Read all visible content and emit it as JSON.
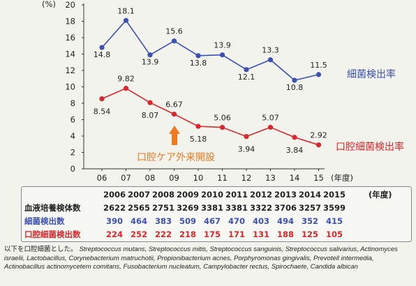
{
  "chart_data": {
    "type": "line",
    "y_unit": "(%)",
    "x_unit": "(年度)",
    "ylim": [
      0,
      20
    ],
    "yticks": [
      "0",
      "2",
      "4",
      "6",
      "8",
      "10",
      "12",
      "14",
      "16",
      "18",
      "20"
    ],
    "categories": [
      "06",
      "07",
      "08",
      "09",
      "10",
      "11",
      "12",
      "13",
      "14",
      "15"
    ],
    "series": [
      {
        "name": "細菌検出率",
        "color": "#3b50b8",
        "values": [
          14.8,
          18.1,
          13.9,
          15.6,
          13.8,
          13.9,
          12.1,
          13.3,
          10.8,
          11.5
        ],
        "labels": [
          "14.8",
          "18.1",
          "13.9",
          "15.6",
          "13.8",
          "13.9",
          "12.1",
          "13.3",
          "10.8",
          "11.5"
        ]
      },
      {
        "name": "口腔細菌検出率",
        "color": "#e0262a",
        "values": [
          8.54,
          9.82,
          8.07,
          6.67,
          5.18,
          5.06,
          3.94,
          5.07,
          3.84,
          2.92
        ],
        "labels": [
          "8.54",
          "9.82",
          "8.07",
          "6.67",
          "5.18",
          "5.06",
          "3.94",
          "5.07",
          "3.84",
          "2.92"
        ]
      }
    ],
    "annotation": {
      "text": "口腔ケア外来開設",
      "color": "#ee7b22",
      "at": "09"
    }
  },
  "table": {
    "years": [
      "2006",
      "2007",
      "2008",
      "2009",
      "2010",
      "2011",
      "2012",
      "2013",
      "2014",
      "2015"
    ],
    "year_unit": "(年度)",
    "rows": [
      {
        "label": "血液培養検体数",
        "color": "#222222",
        "values": [
          "2622",
          "2565",
          "2751",
          "3269",
          "3381",
          "3381",
          "3322",
          "3706",
          "3257",
          "3599"
        ]
      },
      {
        "label": "細菌検出数",
        "color": "#3b50b8",
        "values": [
          "390",
          "464",
          "383",
          "509",
          "467",
          "470",
          "403",
          "494",
          "352",
          "415"
        ]
      },
      {
        "label": "口腔細菌検出数",
        "color": "#e0262a",
        "values": [
          "224",
          "252",
          "222",
          "218",
          "175",
          "171",
          "131",
          "188",
          "125",
          "105"
        ]
      }
    ]
  },
  "note": {
    "prefix": "以下を口腔細菌とした。",
    "bacteria": "Streptococcus mutans, Streptococcus mitis, Streptococcus sanguinis, Streptococcus salivarius, Actinomyces israelii, Lactobacillus, Corynebacterium matruchotii, Propionibacterium acnes, Porphyromonas gingivalis, Prevotell intermedia, Actinobacillus actinomycetem comitans, Fusobacterium nucleatum, Campylobacter rectus, Spirochaete, Candida albican"
  }
}
